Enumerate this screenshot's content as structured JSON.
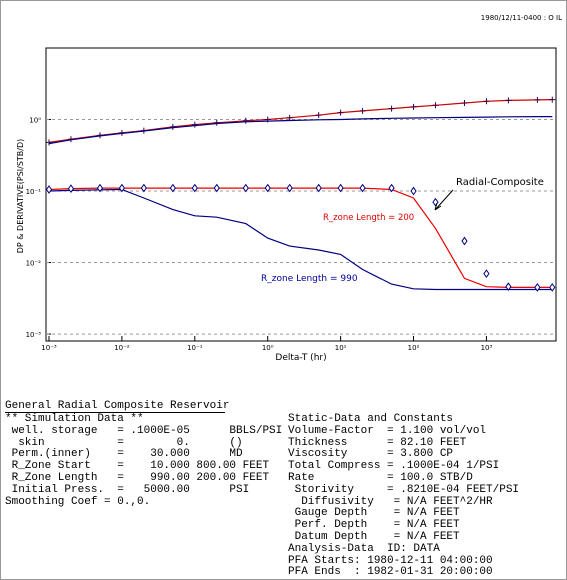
{
  "chart_data": {
    "type": "line",
    "title": "1980/12/11-0400 : O IL",
    "xlabel": "Delta-T (hr)",
    "ylabel": "DP & DERIVATIVE(PSI/STB/D)",
    "log_x": true,
    "log_y": true,
    "grid": true,
    "xlim": [
      0.001,
      9000
    ],
    "ylim": [
      0.0008,
      10
    ],
    "xticks": [
      {
        "value": 0.001,
        "label": "10⁻³"
      },
      {
        "value": 0.01,
        "label": "10⁻²"
      },
      {
        "value": 0.1,
        "label": "10⁻¹"
      },
      {
        "value": 1,
        "label": "10⁰"
      },
      {
        "value": 10,
        "label": "10¹"
      },
      {
        "value": 100,
        "label": "10²"
      },
      {
        "value": 1000,
        "label": "10³"
      }
    ],
    "yticks": [
      {
        "value": 0.001,
        "label": "10⁻³"
      },
      {
        "value": 0.01,
        "label": "10⁻²"
      },
      {
        "value": 0.1,
        "label": "10⁻¹"
      },
      {
        "value": 1,
        "label": "10⁰"
      }
    ],
    "x": [
      0.001,
      0.002,
      0.005,
      0.01,
      0.02,
      0.05,
      0.1,
      0.2,
      0.5,
      1,
      2,
      5,
      10,
      20,
      50,
      100,
      200,
      500,
      1000,
      2000,
      5000,
      8000
    ],
    "series": [
      {
        "color": "#cc0000",
        "line": true,
        "marker": "cross",
        "marker_color": "#400040",
        "values": [
          0.48,
          0.53,
          0.6,
          0.65,
          0.7,
          0.79,
          0.85,
          0.9,
          0.96,
          1.0,
          1.06,
          1.15,
          1.25,
          1.32,
          1.42,
          1.5,
          1.58,
          1.7,
          1.8,
          1.85,
          1.88,
          1.9
        ]
      },
      {
        "color": "#000080",
        "line": true,
        "values": [
          0.46,
          0.52,
          0.59,
          0.64,
          0.69,
          0.77,
          0.82,
          0.88,
          0.93,
          0.95,
          0.97,
          0.99,
          1.0,
          1.02,
          1.04,
          1.05,
          1.06,
          1.07,
          1.08,
          1.09,
          1.1,
          1.1
        ]
      },
      {
        "color": "#000080",
        "line": true,
        "values": [
          0.1,
          0.102,
          0.104,
          0.105,
          0.08,
          0.055,
          0.045,
          0.043,
          0.035,
          0.022,
          0.017,
          0.015,
          0.013,
          0.008,
          0.005,
          0.0043,
          0.0042,
          0.0042,
          0.0042,
          0.0042,
          0.0042,
          0.0042
        ]
      },
      {
        "color": "#ee0000",
        "line": true,
        "values": [
          0.105,
          0.108,
          0.11,
          0.11,
          0.11,
          0.11,
          0.11,
          0.11,
          0.11,
          0.11,
          0.11,
          0.11,
          0.11,
          0.11,
          0.105,
          0.08,
          0.03,
          0.006,
          0.0046,
          0.0045,
          0.0045,
          0.0045
        ]
      },
      {
        "color": "#000080",
        "line": false,
        "marker": "diamond",
        "values": [
          0.105,
          0.108,
          0.11,
          0.11,
          0.11,
          0.11,
          0.11,
          0.11,
          0.11,
          0.11,
          0.11,
          0.11,
          0.11,
          0.11,
          0.11,
          0.1,
          0.07,
          0.02,
          0.007,
          0.0046,
          0.0045,
          0.0045
        ]
      }
    ],
    "annotations": [
      {
        "text": "Radial-Composite",
        "color": "#000000"
      },
      {
        "text": "R_zone Length = 200",
        "color": "#dd0000"
      },
      {
        "text": "R_zone Length = 990",
        "color": "#000099"
      }
    ]
  },
  "report": {
    "title": "General Radial Composite Reservoir",
    "left": [
      "** Simulation Data **",
      " well. storage   = .1000E-05      BBLS/PSI",
      "  skin           =        0.      ()",
      " Perm.(inner)    =    30.000      MD",
      " R_Zone Start    =    10.000 800.00 FEET",
      " R_Zone Length   =    990.00 200.00 FEET",
      " Initial Press.  =   5000.00      PSI",
      "Smoothing Coef = 0.,0."
    ],
    "right": [
      "Static-Data and Constants",
      "Volume-Factor  = 1.100 vol/vol",
      "Thickness      = 82.10 FEET",
      "Viscosity      = 3.800 CP",
      "Total Compress = .1000E-04 1/PSI",
      "Rate           = 100.0 STB/D",
      " Storivity     = .8210E-04 FEET/PSI",
      "  Diffusivity   = N/A FEET^2/HR",
      " Gauge Depth    = N/A FEET",
      " Perf. Depth    = N/A FEET",
      " Datum Depth    = N/A FEET",
      "Analysis-Data  ID: DATA",
      "PFA Starts: 1980-12-11 04:00:00",
      "PFA Ends  : 1982-01-31 20:00:00"
    ]
  }
}
